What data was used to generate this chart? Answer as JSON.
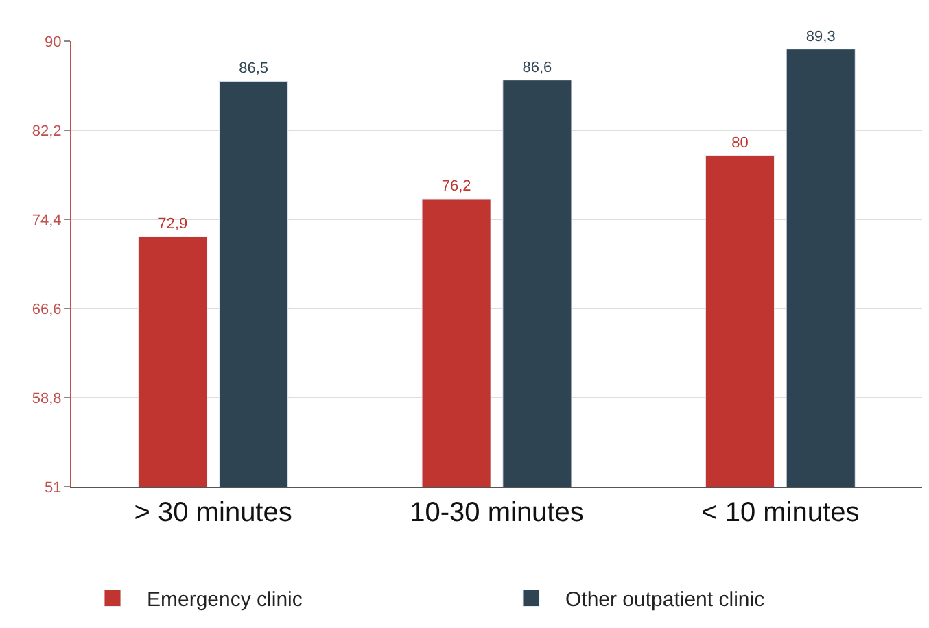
{
  "chart_data": {
    "type": "bar",
    "categories": [
      "> 30 minutes",
      "10-30 minutes",
      "< 10 minutes"
    ],
    "series": [
      {
        "name": "Emergency clinic",
        "color": "#c0352f",
        "values": [
          72.9,
          76.2,
          80
        ],
        "value_labels": [
          "72,9",
          "76,2",
          "80"
        ]
      },
      {
        "name": "Other outpatient clinic",
        "color": "#2e4452",
        "values": [
          86.5,
          86.6,
          89.3
        ],
        "value_labels": [
          "86,5",
          "86,6",
          "89,3"
        ]
      }
    ],
    "ylim": [
      51,
      90
    ],
    "yticks": [
      51,
      {
        "value": 58.8,
        "label": "58,8"
      },
      {
        "value": 66.6,
        "label": "66,6"
      },
      {
        "value": 74.4,
        "label": "74,4"
      },
      {
        "value": 82.2,
        "label": "82,2"
      },
      90
    ],
    "grid": "y",
    "legend": "bottom"
  }
}
